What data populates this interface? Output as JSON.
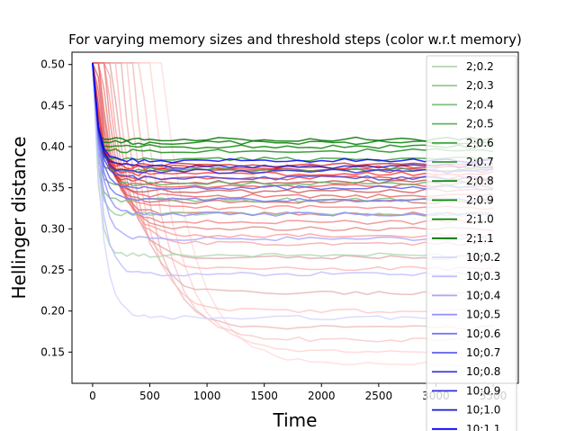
{
  "chart_data": {
    "type": "line",
    "title": "For varying memory sizes and threshold steps (color w.r.t memory)",
    "xlabel": "Time",
    "ylabel": "Hellinger distance",
    "xlim": [
      -180,
      3720
    ],
    "ylim": [
      0.112,
      0.515
    ],
    "xticks": [
      0,
      500,
      1000,
      1500,
      2000,
      2500,
      3000,
      3500
    ],
    "yticks": [
      0.15,
      0.2,
      0.25,
      0.3,
      0.35,
      0.4,
      0.45,
      0.5
    ],
    "grid": false,
    "legend_position": "right",
    "x": [
      0,
      50,
      100,
      150,
      200,
      250,
      300,
      350,
      400,
      450,
      500,
      600,
      700,
      800,
      900,
      1000,
      1100,
      1200,
      1300,
      1400,
      1500,
      1600,
      1700,
      1800,
      1900,
      2000,
      2100,
      2200,
      2300,
      2400,
      2500,
      2600,
      2700,
      2800,
      2900,
      3000,
      3100,
      3200,
      3300,
      3400,
      3500
    ],
    "series": [
      {
        "name": "2;0.2",
        "color": "#b2d8b2",
        "final": 0.268,
        "k": 0.02
      },
      {
        "name": "2;0.3",
        "color": "#99cc99",
        "final": 0.318,
        "k": 0.024
      },
      {
        "name": "2;0.4",
        "color": "#80bf80",
        "final": 0.335,
        "k": 0.028
      },
      {
        "name": "2;0.5",
        "color": "#66b266",
        "final": 0.355,
        "k": 0.032
      },
      {
        "name": "2;0.6",
        "color": "#4ca64c",
        "final": 0.372,
        "k": 0.036
      },
      {
        "name": "2;0.7",
        "color": "#339933",
        "final": 0.385,
        "k": 0.04
      },
      {
        "name": "2;0.8",
        "color": "#198c19",
        "final": 0.395,
        "k": 0.045
      },
      {
        "name": "2;0.9",
        "color": "#0a840a",
        "final": 0.4,
        "k": 0.05
      },
      {
        "name": "2;1.0",
        "color": "#008000",
        "final": 0.405,
        "k": 0.055
      },
      {
        "name": "2;1.1",
        "color": "#007000",
        "final": 0.409,
        "k": 0.06
      },
      {
        "name": "10;0.2",
        "color": "#d6d6ff",
        "final": 0.192,
        "k": 0.012
      },
      {
        "name": "10;0.3",
        "color": "#c0c0ff",
        "final": 0.245,
        "k": 0.013
      },
      {
        "name": "10;0.4",
        "color": "#a8a8ff",
        "final": 0.288,
        "k": 0.014
      },
      {
        "name": "10;0.5",
        "color": "#9090ff",
        "final": 0.318,
        "k": 0.015
      },
      {
        "name": "10;0.6",
        "color": "#7878f0",
        "final": 0.335,
        "k": 0.016
      },
      {
        "name": "10;0.7",
        "color": "#6060e8",
        "final": 0.35,
        "k": 0.017
      },
      {
        "name": "10;0.8",
        "color": "#4848e0",
        "final": 0.362,
        "k": 0.018
      },
      {
        "name": "10;0.9",
        "color": "#3030d8",
        "final": 0.37,
        "k": 0.019
      },
      {
        "name": "10;1.0",
        "color": "#1818cc",
        "final": 0.376,
        "k": 0.02
      },
      {
        "name": "10;1.1",
        "color": "#0000ff",
        "final": 0.383,
        "k": 0.021
      }
    ],
    "unlabeled_series": [
      {
        "color": "#ffd6d6",
        "final": 0.135,
        "k": 0.0035,
        "delay": 600
      },
      {
        "color": "#ffcccc",
        "final": 0.15,
        "k": 0.004,
        "delay": 500
      },
      {
        "color": "#f5c0c0",
        "final": 0.165,
        "k": 0.0045,
        "delay": 420
      },
      {
        "color": "#e8b0b0",
        "final": 0.18,
        "k": 0.005,
        "delay": 350
      },
      {
        "color": "#ffbcbc",
        "final": 0.2,
        "k": 0.0055,
        "delay": 300
      },
      {
        "color": "#e0a8a8",
        "final": 0.222,
        "k": 0.006,
        "delay": 250
      },
      {
        "color": "#ffaaaa",
        "final": 0.252,
        "k": 0.0065,
        "delay": 200
      },
      {
        "color": "#d89898",
        "final": 0.265,
        "k": 0.007,
        "delay": 170
      },
      {
        "color": "#f59999",
        "final": 0.282,
        "k": 0.0075,
        "delay": 140
      },
      {
        "color": "#ff8c8c",
        "final": 0.292,
        "k": 0.008,
        "delay": 120
      },
      {
        "color": "#e07878",
        "final": 0.3,
        "k": 0.0085,
        "delay": 100
      },
      {
        "color": "#f07070",
        "final": 0.308,
        "k": 0.009,
        "delay": 80
      },
      {
        "color": "#d06060",
        "final": 0.318,
        "k": 0.0095,
        "delay": 60
      },
      {
        "color": "#ff6666",
        "final": 0.326,
        "k": 0.01,
        "delay": 50
      },
      {
        "color": "#c85050",
        "final": 0.333,
        "k": 0.011,
        "delay": 40
      },
      {
        "color": "#f04848",
        "final": 0.34,
        "k": 0.012,
        "delay": 30
      },
      {
        "color": "#c04040",
        "final": 0.346,
        "k": 0.013,
        "delay": 20
      },
      {
        "color": "#ff3333",
        "final": 0.352,
        "k": 0.014,
        "delay": 15
      },
      {
        "color": "#b83030",
        "final": 0.357,
        "k": 0.015,
        "delay": 10
      },
      {
        "color": "#e82020",
        "final": 0.362,
        "k": 0.016,
        "delay": 5
      },
      {
        "color": "#ff1010",
        "final": 0.367,
        "k": 0.017,
        "delay": 0
      },
      {
        "color": "#a82020",
        "final": 0.371,
        "k": 0.018,
        "delay": 0
      },
      {
        "color": "#ff0000",
        "final": 0.375,
        "k": 0.019,
        "delay": 0
      },
      {
        "color": "#d00000",
        "final": 0.378,
        "k": 0.02,
        "delay": 0
      }
    ],
    "start_value": 0.502
  }
}
